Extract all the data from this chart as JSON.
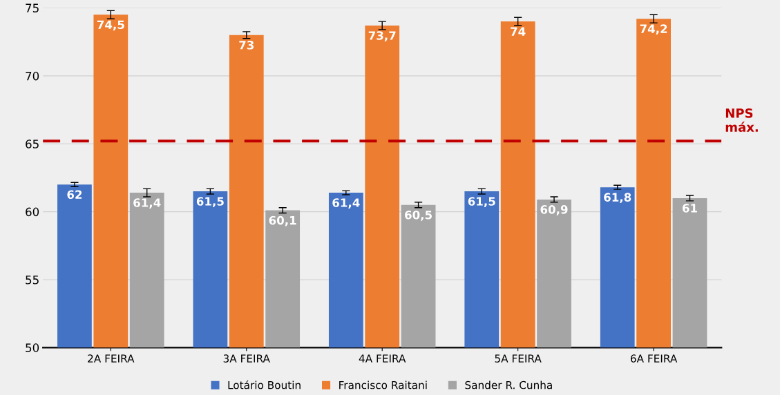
{
  "chart_data": {
    "type": "bar",
    "categories": [
      "2A FEIRA",
      "3A FEIRA",
      "4A FEIRA",
      "5A FEIRA",
      "6A FEIRA"
    ],
    "series": [
      {
        "name": "Lotário Boutin",
        "color": "#4472c4",
        "values": [
          62,
          61.5,
          61.4,
          61.5,
          61.8
        ],
        "errors": [
          0.15,
          0.2,
          0.15,
          0.2,
          0.15
        ],
        "value_labels": [
          "62",
          "61,5",
          "61,4",
          "61,5",
          "61,8"
        ]
      },
      {
        "name": "Francisco Raitani",
        "color": "#ed7d31",
        "values": [
          74.5,
          73,
          73.7,
          74,
          74.2
        ],
        "errors": [
          0.3,
          0.25,
          0.3,
          0.3,
          0.3
        ],
        "value_labels": [
          "74,5",
          "73",
          "73,7",
          "74",
          "74,2"
        ]
      },
      {
        "name": "Sander R. Cunha",
        "color": "#a5a5a5",
        "values": [
          61.4,
          60.1,
          60.5,
          60.9,
          61
        ],
        "errors": [
          0.3,
          0.2,
          0.2,
          0.2,
          0.2
        ],
        "value_labels": [
          "61,4",
          "60,1",
          "60,5",
          "60,9",
          "61"
        ]
      }
    ],
    "ylim": [
      50,
      75
    ],
    "yticks": [
      50,
      55,
      60,
      65,
      70,
      75
    ],
    "grid": "y",
    "legend": "bottom",
    "ref_lines": [
      {
        "axis": "y",
        "value": 65.2,
        "label": "NPS\nmáx.",
        "color": "#c00000",
        "line_style": "dashed"
      }
    ]
  }
}
